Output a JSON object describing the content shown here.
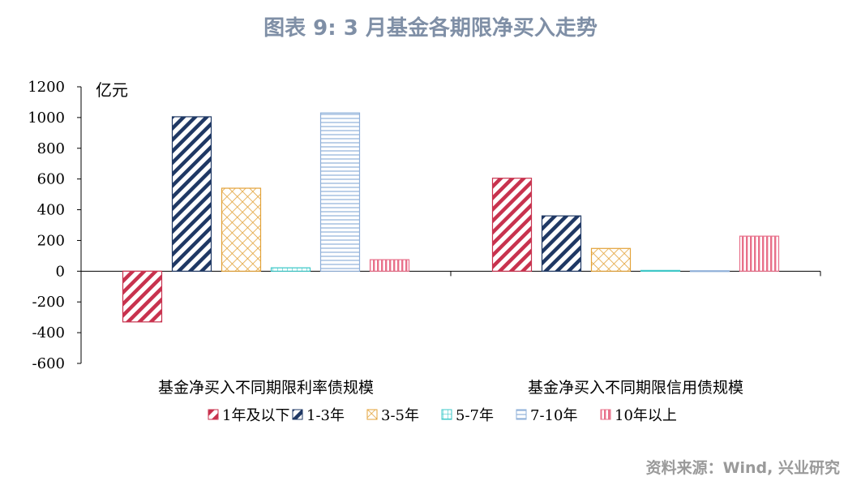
{
  "title": "图表 9:  3 月基金各期限净买入走势",
  "source": "资料来源：Wind, 兴业研究",
  "colors": {
    "series": [
      "#c8324e",
      "#1f3864",
      "#e3a33a",
      "#3ec8c8",
      "#8fb0d9",
      "#e8708a"
    ],
    "axis": "#000000",
    "title": "#7f8fa6",
    "source": "#9a9a9a"
  },
  "chart_data": {
    "type": "bar",
    "unit_label": "亿元",
    "categories": [
      "基金净买入不同期限利率债规模",
      "基金净买入不同期限信用债规模"
    ],
    "ylim": [
      -600,
      1200
    ],
    "yticks": [
      1200,
      1000,
      800,
      600,
      400,
      200,
      0,
      -200,
      -400,
      -600
    ],
    "grid": false,
    "legend_position": "bottom",
    "series": [
      {
        "name": "1年及以下",
        "values": [
          -330,
          605
        ],
        "pattern": "diag-right"
      },
      {
        "name": "1-3年",
        "values": [
          1005,
          360
        ],
        "pattern": "diag-right"
      },
      {
        "name": "3-5年",
        "values": [
          540,
          148
        ],
        "pattern": "crosshatch"
      },
      {
        "name": "5-7年",
        "values": [
          22,
          5
        ],
        "pattern": "grid"
      },
      {
        "name": "7-10年",
        "values": [
          1030,
          3
        ],
        "pattern": "horizontal"
      },
      {
        "name": "10年以上",
        "values": [
          75,
          228
        ],
        "pattern": "vertical"
      }
    ]
  }
}
